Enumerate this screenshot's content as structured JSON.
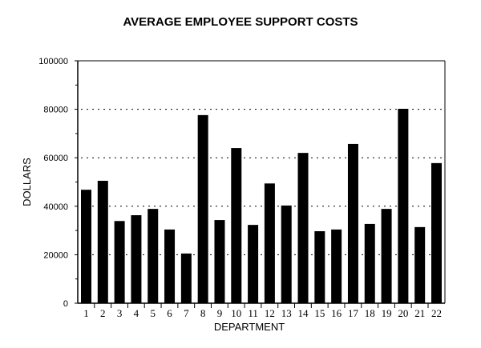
{
  "chart_data": {
    "type": "bar",
    "title": "AVERAGE EMPLOYEE SUPPORT COSTS",
    "xlabel": "DEPARTMENT",
    "ylabel": "DOLLARS",
    "ylim": [
      0,
      100000
    ],
    "yticks": [
      "0",
      "20000",
      "40000",
      "60000",
      "80000",
      "100000"
    ],
    "grid": "dotted horizontal",
    "categories": [
      "1",
      "2",
      "3",
      "4",
      "5",
      "6",
      "7",
      "8",
      "9",
      "10",
      "11",
      "12",
      "13",
      "14",
      "15",
      "16",
      "17",
      "18",
      "19",
      "20",
      "21",
      "22"
    ],
    "values": [
      46800,
      50500,
      33900,
      36300,
      38900,
      30400,
      20500,
      77600,
      34300,
      64000,
      32300,
      49400,
      40300,
      62000,
      29700,
      30400,
      65700,
      32700,
      38900,
      80200,
      31400,
      57800
    ],
    "colors": {
      "bar": "#000000"
    }
  }
}
